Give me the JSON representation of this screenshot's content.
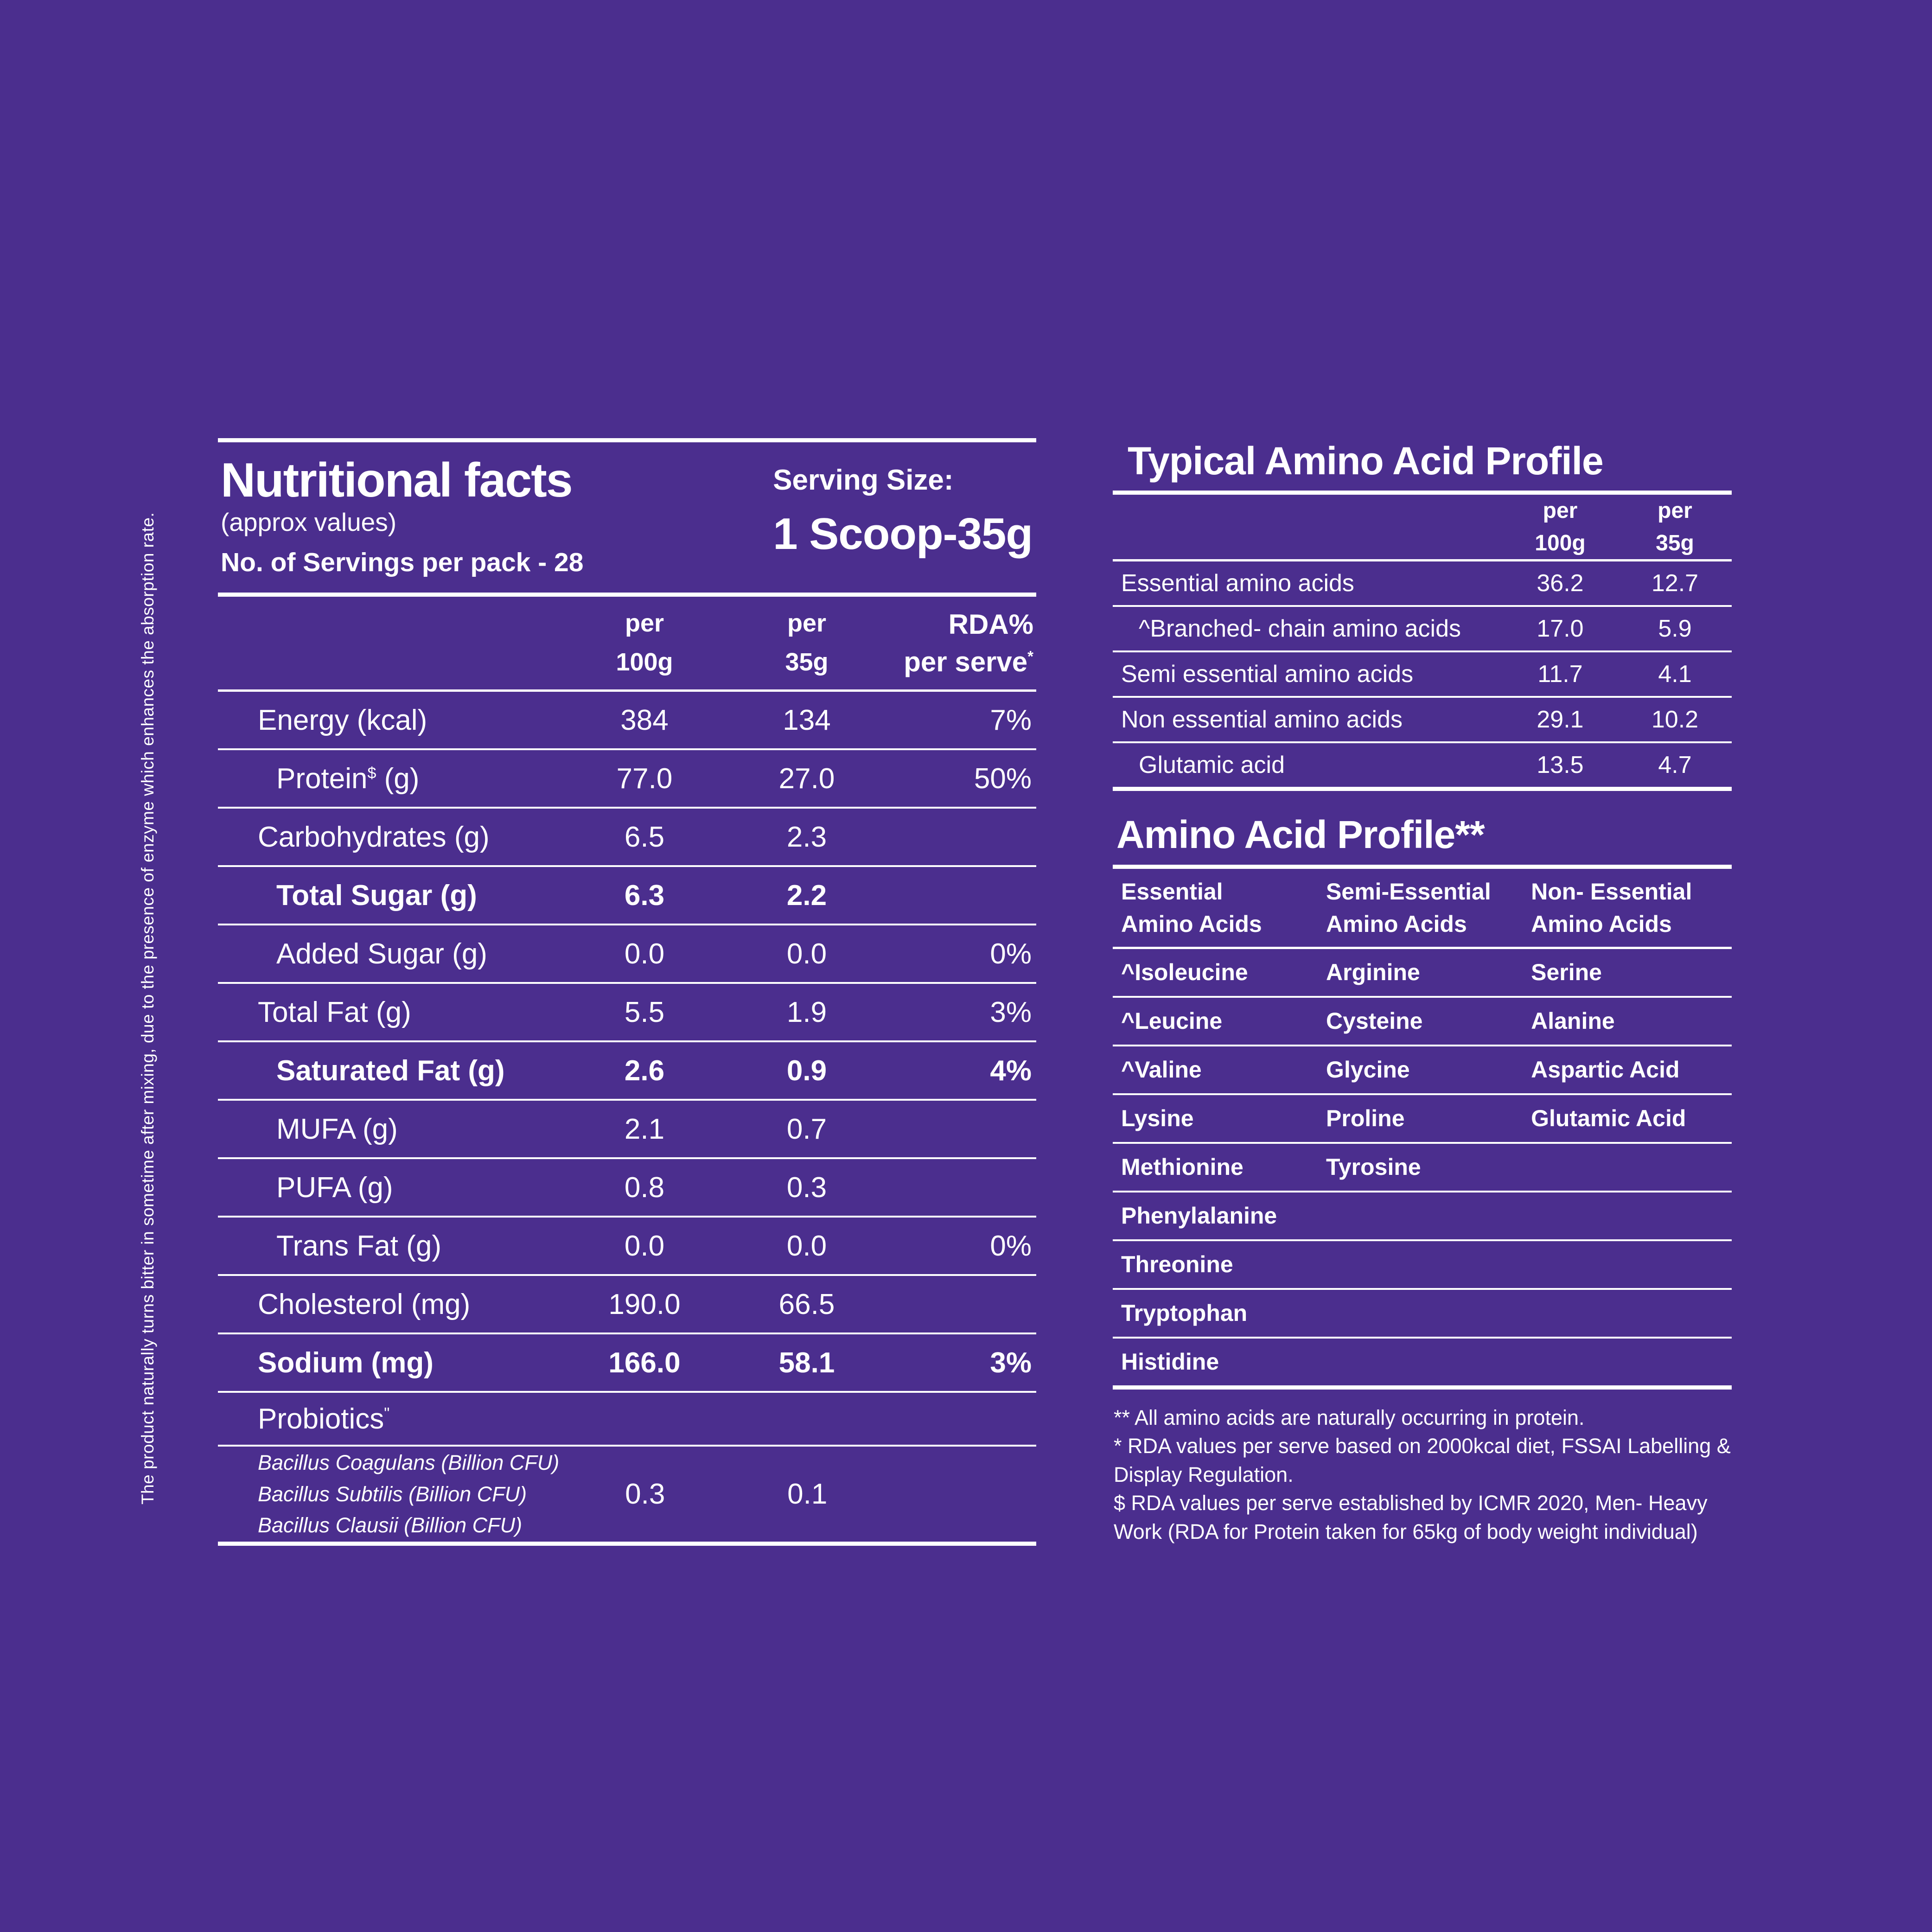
{
  "colors": {
    "background": "#4B2E8E",
    "text": "#FFFFFF"
  },
  "side_note": "The product naturally turns bitter in sometime after mixing, due to the presence of enzyme which enhances the absorption rate.",
  "nutrition": {
    "title": "Nutritional facts",
    "subtitle": "(approx values)",
    "servings_line": "No. of Servings per pack - 28",
    "serving_size_label": "Serving Size:",
    "serving_size_value": "1 Scoop-35g",
    "header": {
      "per1_line1": "per",
      "per1_line2": "100g",
      "per2_line1": "per",
      "per2_line2": "35g",
      "rda_line1": "RDA%",
      "rda_line2": "per serve",
      "rda_sup": "*"
    },
    "rows": [
      {
        "label": "Energy (kcal)",
        "v100": "384",
        "v35": "134",
        "rda": "7%"
      },
      {
        "label": "Protein",
        "label_sup": "$",
        "label_post": " (g)",
        "v100": "77.0",
        "v35": "27.0",
        "rda": "50%"
      },
      {
        "label": "Carbohydrates (g)",
        "v100": "6.5",
        "v35": "2.3",
        "rda": ""
      },
      {
        "label": "Total Sugar (g)",
        "v100": "6.3",
        "v35": "2.2",
        "rda": ""
      },
      {
        "label": "Added Sugar (g)",
        "v100": "0.0",
        "v35": "0.0",
        "rda": "0%"
      },
      {
        "label": "Total Fat (g)",
        "v100": "5.5",
        "v35": "1.9",
        "rda": "3%"
      },
      {
        "label": "Saturated Fat (g)",
        "v100": "2.6",
        "v35": "0.9",
        "rda": "4%"
      },
      {
        "label": "MUFA (g)",
        "v100": "2.1",
        "v35": "0.7",
        "rda": ""
      },
      {
        "label": "PUFA (g)",
        "v100": "0.8",
        "v35": "0.3",
        "rda": ""
      },
      {
        "label": "Trans Fat (g)",
        "v100": "0.0",
        "v35": "0.0",
        "rda": "0%"
      },
      {
        "label": "Cholesterol (mg)",
        "v100": "190.0",
        "v35": "66.5",
        "rda": ""
      },
      {
        "label": "Sodium (mg)",
        "v100": "166.0",
        "v35": "58.1",
        "rda": "3%"
      }
    ],
    "probiotics": {
      "label": "Probiotics",
      "sup": "\"",
      "strain1": "Bacillus Coagulans (Billion CFU)",
      "strain2": "Bacillus Subtilis (Billion CFU)",
      "strain3": "Bacillus Clausii (Billion CFU)",
      "v100": "0.3",
      "v35": "0.1"
    }
  },
  "typical": {
    "title": "Typical Amino Acid Profile",
    "header": {
      "per1_line1": "per",
      "per1_line2": "100g",
      "per2_line1": "per",
      "per2_line2": "35g"
    },
    "rows": [
      {
        "label": "Essential amino acids",
        "v100": "36.2",
        "v35": "12.7"
      },
      {
        "label": "^Branched- chain amino acids",
        "v100": "17.0",
        "v35": "5.9"
      },
      {
        "label": "Semi essential amino acids",
        "v100": "11.7",
        "v35": "4.1"
      },
      {
        "label": "Non essential amino acids",
        "v100": "29.1",
        "v35": "10.2"
      },
      {
        "label": "Glutamic acid",
        "v100": "13.5",
        "v35": "4.7"
      }
    ]
  },
  "profile": {
    "title": "Amino Acid Profile**",
    "col_headers": [
      {
        "line1": "Essential",
        "line2": "Amino Acids"
      },
      {
        "line1": "Semi-Essential",
        "line2": "Amino Acids"
      },
      {
        "line1": "Non- Essential",
        "line2": "Amino Acids"
      }
    ],
    "rows": [
      [
        "^Isoleucine",
        "Arginine",
        "Serine"
      ],
      [
        "^Leucine",
        "Cysteine",
        "Alanine"
      ],
      [
        "^Valine",
        "Glycine",
        "Aspartic Acid"
      ],
      [
        "Lysine",
        "Proline",
        "Glutamic Acid"
      ],
      [
        "Methionine",
        "Tyrosine",
        ""
      ],
      [
        "Phenylalanine",
        "",
        ""
      ],
      [
        "Threonine",
        "",
        ""
      ],
      [
        "Tryptophan",
        "",
        ""
      ],
      [
        "Histidine",
        "",
        ""
      ]
    ]
  },
  "footnotes": [
    "** All amino acids are naturally occurring in protein.",
    "* RDA values per serve based on 2000kcal diet, FSSAI Labelling & Display Regulation.",
    "$ RDA values per serve established by ICMR 2020, Men- Heavy Work (RDA for Protein taken for 65kg of body weight individual)"
  ]
}
